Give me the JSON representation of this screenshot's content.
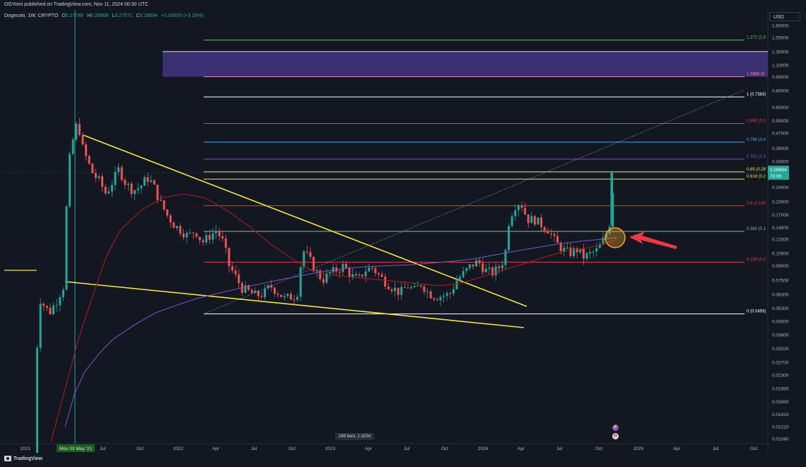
{
  "header": {
    "published": "OGYomi published on TradingView.com, Nov 11, 2024 00:30 UTC",
    "symbol": "Dogecoin, 1W, CRYPTO",
    "ohlc": [
      {
        "label": "O",
        "value": "0.27788"
      },
      {
        "label": "H",
        "value": "0.28868"
      },
      {
        "label": "L",
        "value": "0.27571"
      },
      {
        "label": "C",
        "value": "0.28694"
      }
    ],
    "change": "+0.00905 (+3.26%)"
  },
  "currency": "USD",
  "footer": {
    "brand": "TradingView",
    "bars_range": "189 bars, 1,323d"
  },
  "colors": {
    "background": "#131722",
    "up": "#26a69a",
    "down": "#ef5350",
    "trendline": "#f5e242",
    "ma_red": "#b71c1c",
    "ma_purple": "#7e57c2",
    "zone": "#4a3a8c",
    "arrow": "#f23645",
    "circle": "#f5a623"
  },
  "chart_data": {
    "type": "candlestick",
    "title": "Dogecoin, 1W, CRYPTO",
    "scale": "log",
    "y_ticks": [
      "1.80000",
      "1.55000",
      "1.30000",
      "1.10000",
      "0.95000",
      "0.80000",
      "0.65000",
      "0.55000",
      "0.47000",
      "0.39000",
      "0.33000",
      "0.28000",
      "0.24000",
      "0.20000",
      "0.17000",
      "0.14500",
      "0.12500",
      "0.10500",
      "0.09000",
      "0.07500",
      "0.06300",
      "0.05300",
      "0.04500",
      "0.03800",
      "0.03200",
      "0.02700",
      "0.02300",
      "0.01950",
      "0.01650",
      "0.01410",
      "0.01210",
      "0.01040"
    ],
    "x_ticks": [
      "2021",
      "Jul",
      "Oct",
      "2022",
      "Apr",
      "Jul",
      "Oct",
      "2023",
      "Apr",
      "Jul",
      "Oct",
      "2024",
      "Apr",
      "Jul",
      "Oct",
      "2025",
      "Apr",
      "Jul",
      "Oct"
    ],
    "x_highlight_label": "Mon 03 May '21",
    "last_price": {
      "value": "0.28694",
      "countdown": "7d 0h"
    },
    "fib_levels": [
      {
        "label": "1.272 (1.5",
        "price": 1.5,
        "color": "#66bb6a"
      },
      {
        "label": "1.0866 (0.",
        "price": 0.95,
        "color": "#ff80ab"
      },
      {
        "label": "1 (0.7383)",
        "price": 0.7383,
        "color": "#ffffff"
      },
      {
        "label": "0.886 (0.5",
        "price": 0.53,
        "color": "#f23645"
      },
      {
        "label": "0.786 (0.4",
        "price": 0.42,
        "color": "#42a5f5"
      },
      {
        "label": "0.702 (0.3",
        "price": 0.34,
        "color": "#7e57c2"
      },
      {
        "label": "0.65 (0.28",
        "price": 0.29,
        "color": "#f5e242"
      },
      {
        "label": "0.618 (0.2",
        "price": 0.265,
        "color": "#f5e242"
      },
      {
        "label": "0.5 (0.190",
        "price": 0.19,
        "color": "#f23645"
      },
      {
        "label": "0.382 (0.1",
        "price": 0.138,
        "color": "#81c784"
      },
      {
        "label": "0.236 (0.0",
        "price": 0.094,
        "color": "#f23645"
      },
      {
        "label": "0 (0.0493)",
        "price": 0.0493,
        "color": "#ffffff"
      }
    ],
    "zone": {
      "top": 1.3,
      "bottom": 0.95
    },
    "events": [
      "lightning",
      "us-flag"
    ]
  }
}
